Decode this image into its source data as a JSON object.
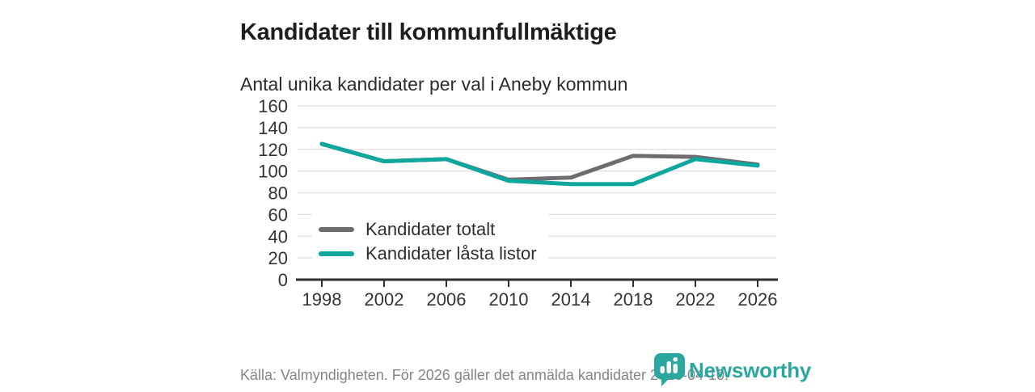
{
  "header": {
    "title": "Kandidater till kommunfullmäktige",
    "subtitle": "Antal unika kandidater per val i Aneby kommun"
  },
  "chart_data": {
    "type": "line",
    "title": "Kandidater till kommunfullmäktige",
    "subtitle": "Antal unika kandidater per val i Aneby kommun",
    "xlabel": "",
    "ylabel": "",
    "x": [
      1998,
      2002,
      2006,
      2010,
      2014,
      2018,
      2022,
      2026
    ],
    "series": [
      {
        "name": "Kandidater totalt",
        "color": "#6e6c71",
        "values": [
          125,
          109,
          111,
          92,
          94,
          114,
          113,
          106
        ]
      },
      {
        "name": "Kandidater låsta listor",
        "color": "#0fa69e",
        "values": [
          125,
          109,
          111,
          91,
          88,
          88,
          111,
          105
        ]
      }
    ],
    "ylim": [
      0,
      160
    ],
    "ytick_step": 20,
    "grid": "horizontal-only",
    "legend_position": "inside-upper-left"
  },
  "styles": {
    "grid_color": "#e3e3e3",
    "axis_color": "#2e2e2e",
    "tick_label_color": "#333333",
    "line_width": 5
  },
  "footer": {
    "source": "Källa: Valmyndigheten. För 2026 gäller det anmälda kandidater 2026-04-10.",
    "brand_name": "Newsworthy",
    "brand_color": "#2ba7a0",
    "brand_icon": "speech-bubble-bar-chart"
  }
}
